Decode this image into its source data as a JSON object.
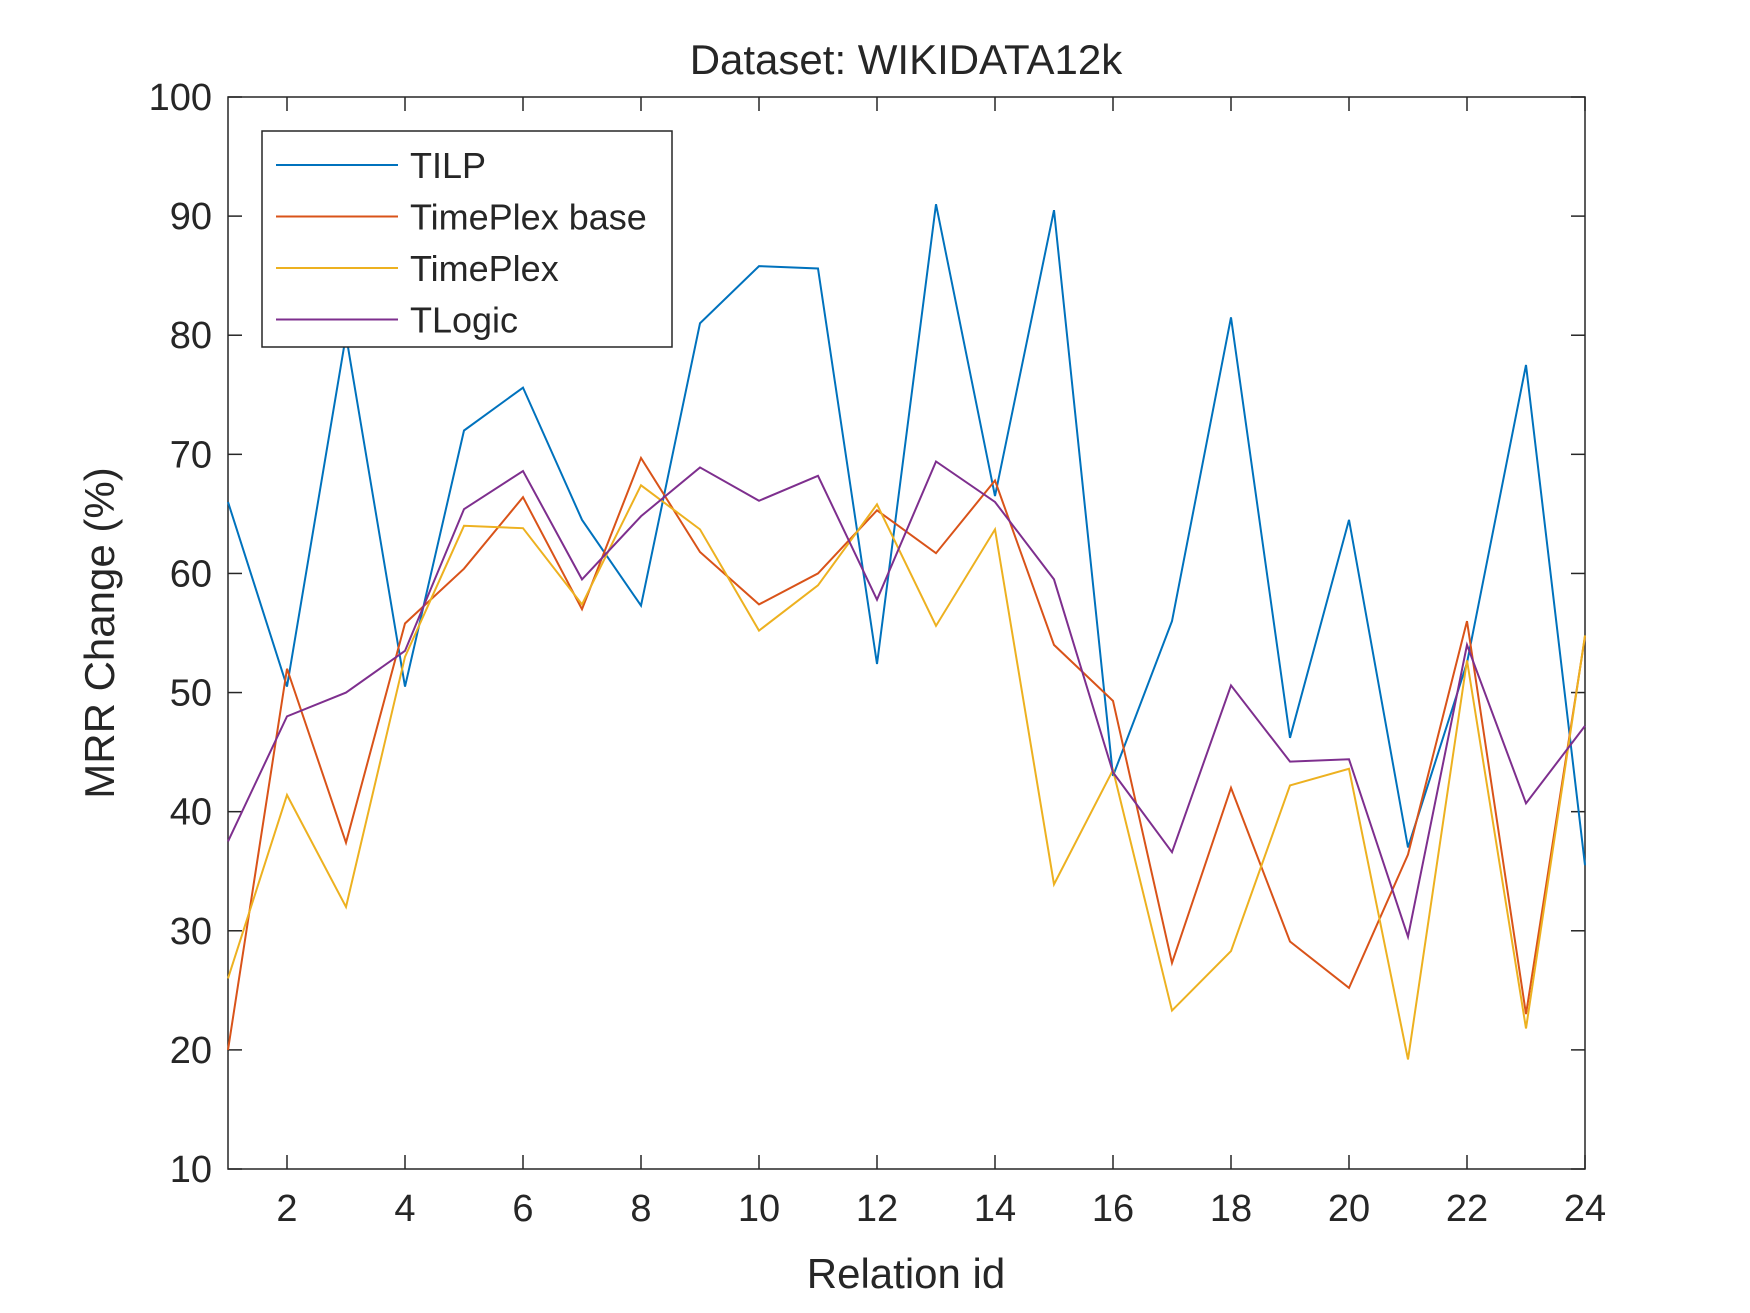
{
  "chart_data": {
    "type": "line",
    "title": "Dataset: WIKIDATA12k",
    "xlabel": "Relation id",
    "ylabel": "MRR Change (%)",
    "xlim": [
      1,
      24
    ],
    "ylim": [
      10,
      100
    ],
    "xticks": [
      2,
      4,
      6,
      8,
      10,
      12,
      14,
      16,
      18,
      20,
      22,
      24
    ],
    "yticks": [
      10,
      20,
      30,
      40,
      50,
      60,
      70,
      80,
      90,
      100
    ],
    "x": [
      1,
      2,
      3,
      4,
      5,
      6,
      7,
      8,
      9,
      10,
      11,
      12,
      13,
      14,
      15,
      16,
      17,
      18,
      19,
      20,
      21,
      22,
      23,
      24
    ],
    "legend_position": "top-left",
    "grid": false,
    "series": [
      {
        "name": "TILP",
        "color": "#0072BD",
        "values": [
          66,
          50.5,
          80,
          50.5,
          72,
          75.6,
          64.5,
          57.3,
          81,
          85.8,
          85.6,
          52.4,
          91,
          66.5,
          90.5,
          43,
          56,
          81.5,
          46.2,
          64.5,
          37,
          52.5,
          77.5,
          35.5
        ]
      },
      {
        "name": "TimePlex base",
        "color": "#D95319",
        "values": [
          20,
          52,
          37.4,
          55.8,
          60.4,
          66.4,
          57,
          69.7,
          61.8,
          57.4,
          60,
          65.3,
          61.7,
          67.8,
          54,
          49.3,
          27.3,
          42,
          29.1,
          25.2,
          36.4,
          56,
          23,
          54.7
        ]
      },
      {
        "name": "TimePlex",
        "color": "#EDB120",
        "values": [
          26,
          41.4,
          32,
          53,
          64,
          63.8,
          57.4,
          67.4,
          63.7,
          55.2,
          59,
          65.8,
          55.6,
          63.7,
          33.9,
          43.5,
          23.3,
          28.3,
          42.2,
          43.6,
          19.2,
          52.7,
          21.8,
          54.8
        ]
      },
      {
        "name": "TLogic",
        "color": "#7E2F8E",
        "values": [
          37.5,
          48,
          50,
          53.5,
          65.4,
          68.6,
          59.5,
          64.8,
          68.9,
          66.1,
          68.2,
          57.8,
          69.4,
          66,
          59.5,
          43.3,
          36.6,
          50.6,
          44.2,
          44.4,
          29.5,
          54,
          40.7,
          47.2
        ]
      }
    ]
  }
}
